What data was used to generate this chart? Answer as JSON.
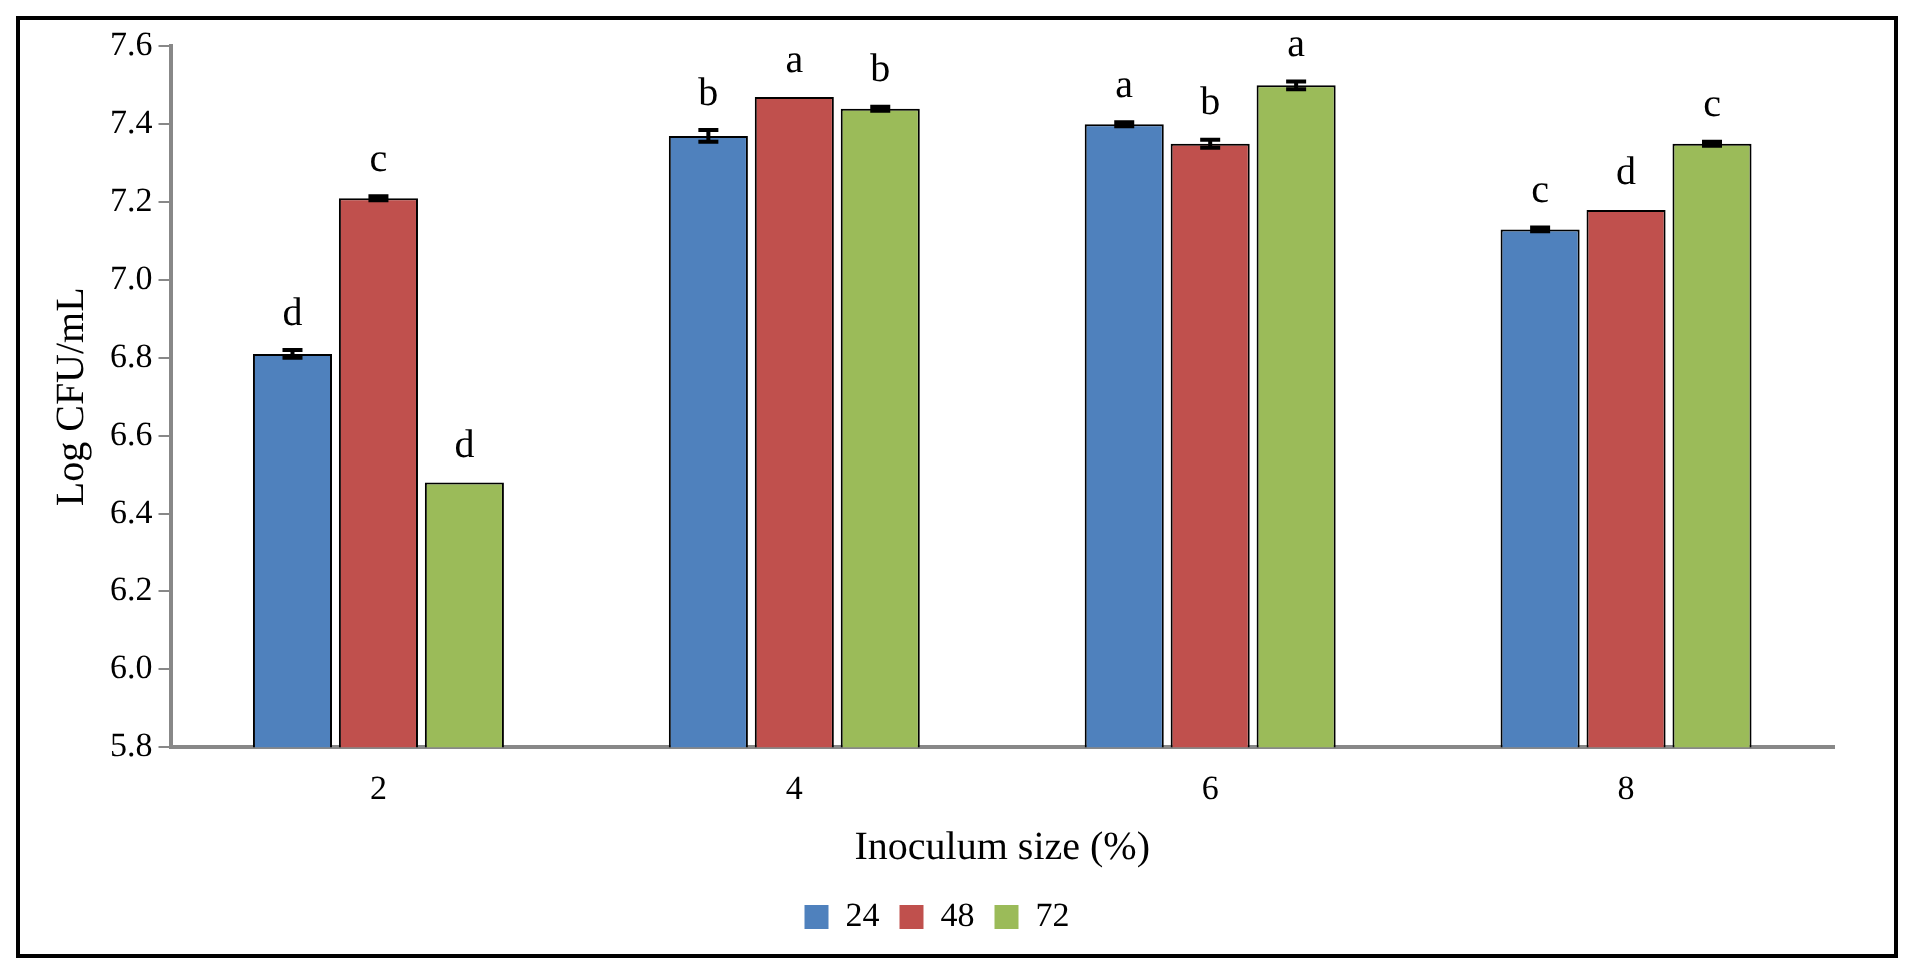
{
  "chart_data": {
    "type": "bar",
    "xlabel": "Inoculum size (%)",
    "ylabel": "Log CFU/mL",
    "categories": [
      "2",
      "4",
      "6",
      "8"
    ],
    "series": [
      {
        "name": "24",
        "color": "#4f81bd",
        "values": [
          6.81,
          7.37,
          7.4,
          7.13
        ],
        "errors": [
          0.01,
          0.015,
          0.005,
          0.005
        ]
      },
      {
        "name": "48",
        "color": "#c0504d",
        "values": [
          7.21,
          7.47,
          7.35,
          7.18
        ],
        "errors": [
          0.005,
          null,
          0.01,
          null
        ]
      },
      {
        "name": "72",
        "color": "#9bbb59",
        "values": [
          6.48,
          7.44,
          7.5,
          7.35
        ],
        "errors": [
          null,
          0.005,
          0.01,
          0.005
        ]
      }
    ],
    "ylim": [
      5.8,
      7.6
    ],
    "yticks": [
      {
        "value": 5.8,
        "label": "5.8"
      },
      {
        "value": 6.0,
        "label": "6.0"
      },
      {
        "value": 6.2,
        "label": "6.2"
      },
      {
        "value": 6.4,
        "label": "6.4"
      },
      {
        "value": 6.6,
        "label": "6.6"
      },
      {
        "value": 6.8,
        "label": "6.8"
      },
      {
        "value": 7.0,
        "label": "7.0"
      },
      {
        "value": 7.2,
        "label": "7.2"
      },
      {
        "value": 7.4,
        "label": "7.4"
      },
      {
        "value": 7.6,
        "label": "7.6"
      }
    ],
    "grid": false,
    "legend": "bottom",
    "annotations": [
      "d",
      "c",
      "d",
      "b",
      "a",
      "b",
      "a",
      "b",
      "a",
      "c",
      "d",
      "c"
    ]
  }
}
